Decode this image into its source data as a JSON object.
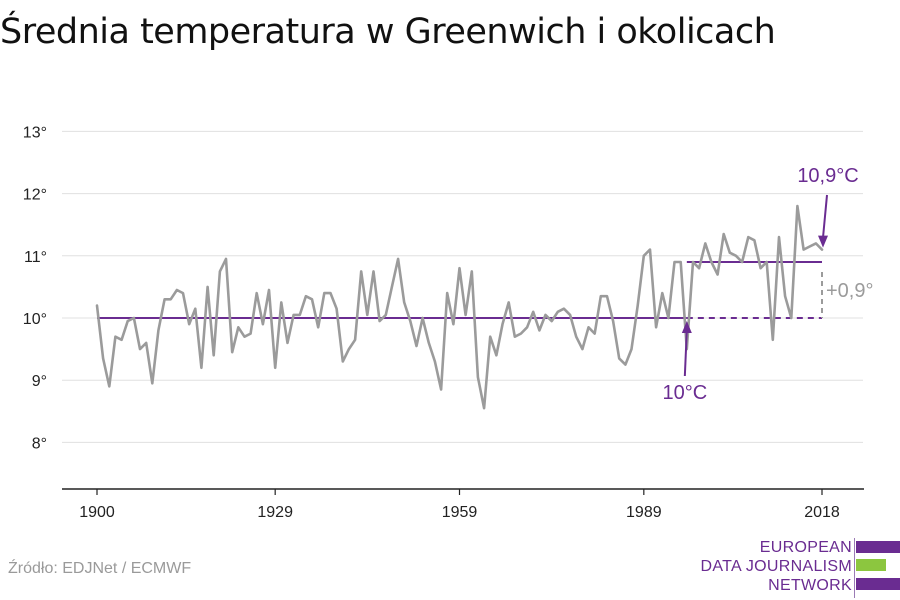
{
  "title": "Średnia temperatura w Greenwich i okolicach",
  "source": "Źródło: EDJNet / ECMWF",
  "logo": {
    "lines": [
      "EUROPEAN",
      "DATA JOURNALISM",
      "NETWORK"
    ],
    "bar_colors": [
      "#6a2c91",
      "#8cc63f",
      "#6a2c91"
    ]
  },
  "colors": {
    "series": "#9b9b9b",
    "accent": "#6a2c91",
    "grid": "#e0e0e0",
    "axis": "#222222"
  },
  "chart_data": {
    "type": "line",
    "title": "Średnia temperatura w Greenwich i okolicach",
    "xlabel": "",
    "ylabel": "",
    "xlim": [
      1900,
      2018
    ],
    "ylim": [
      7.3,
      13.2
    ],
    "x_ticks": [
      1900,
      1929,
      1959,
      1989,
      2018
    ],
    "x_tick_labels": [
      "1900",
      "1929",
      "1959",
      "1989",
      "2018"
    ],
    "y_ticks": [
      8,
      9,
      10,
      11,
      12,
      13
    ],
    "y_tick_labels": [
      "8°",
      "9°",
      "10°",
      "11°",
      "12°",
      "13°"
    ],
    "grid": true,
    "legend": "none",
    "series": [
      {
        "x_start": 1900,
        "x_step": 1,
        "values": [
          10.2,
          9.35,
          8.9,
          9.7,
          9.65,
          9.95,
          10.0,
          9.5,
          9.6,
          8.95,
          9.8,
          10.3,
          10.3,
          10.45,
          10.4,
          9.9,
          10.15,
          9.2,
          10.5,
          9.4,
          10.75,
          10.95,
          9.45,
          9.85,
          9.7,
          9.75,
          10.4,
          9.9,
          10.45,
          9.2,
          10.25,
          9.6,
          10.05,
          10.05,
          10.35,
          10.3,
          9.85,
          10.4,
          10.4,
          10.15,
          9.3,
          9.5,
          9.65,
          10.75,
          10.05,
          10.75,
          9.95,
          10.05,
          10.5,
          10.95,
          10.25,
          9.95,
          9.55,
          10.0,
          9.6,
          9.3,
          8.85,
          10.4,
          9.9,
          10.8,
          10.05,
          10.75,
          9.05,
          8.55,
          9.7,
          9.4,
          9.9,
          10.25,
          9.7,
          9.75,
          9.85,
          10.1,
          9.8,
          10.05,
          9.95,
          10.1,
          10.15,
          10.05,
          9.7,
          9.5,
          9.85,
          9.75,
          10.35,
          10.35,
          9.95,
          9.35,
          9.25,
          9.5,
          10.2,
          11.0,
          11.1,
          9.85,
          10.4,
          10.0,
          10.9,
          10.9,
          9.5,
          10.9,
          10.8,
          11.2,
          10.9,
          10.7,
          11.35,
          11.05,
          11.0,
          10.9,
          11.3,
          11.25,
          10.8,
          10.9,
          9.65,
          11.3,
          10.35,
          10.0,
          11.8,
          11.1,
          11.15,
          11.2,
          11.1
        ]
      }
    ],
    "reference_lines": [
      {
        "value": 10.0,
        "from": 1900,
        "to": 2018,
        "dashed_from": 1996
      },
      {
        "value": 10.9,
        "from": 1996,
        "to": 2018
      }
    ],
    "annotations": [
      {
        "text": "10°C",
        "x": 1996,
        "y": 10.0
      },
      {
        "text": "10,9°C",
        "x": 2018,
        "y": 11.1
      },
      {
        "text": "+0,9°",
        "x": 2018,
        "y": 10.45
      }
    ]
  }
}
